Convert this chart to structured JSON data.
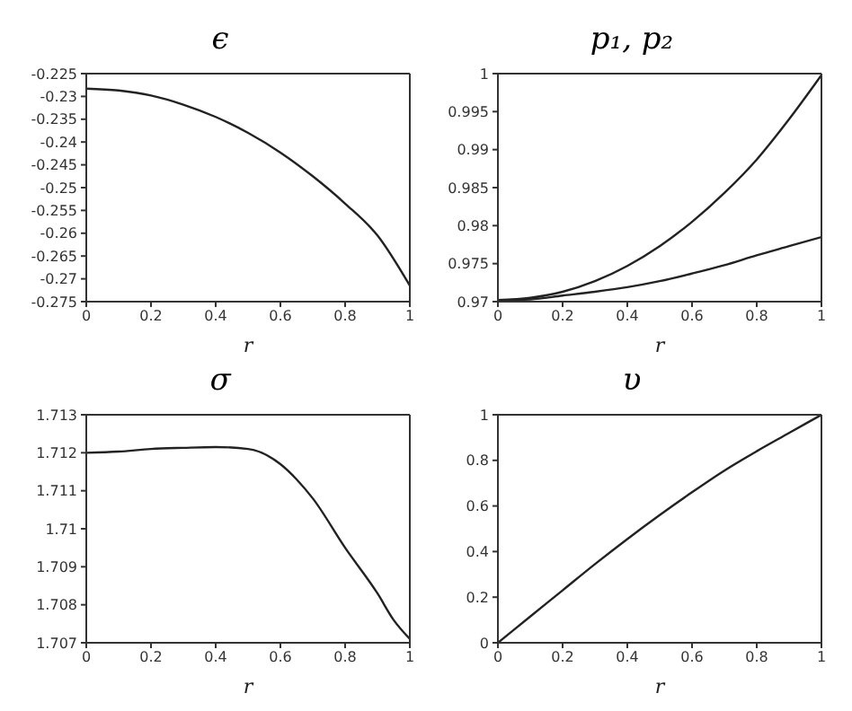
{
  "chart_data": [
    {
      "type": "line",
      "title": "ϵ",
      "xlabel": "r",
      "x": [
        0,
        0.1,
        0.2,
        0.3,
        0.4,
        0.5,
        0.6,
        0.7,
        0.8,
        0.9,
        1
      ],
      "xlim": [
        0,
        1
      ],
      "xticks": [
        0,
        0.2,
        0.4,
        0.6,
        0.8,
        1
      ],
      "ylim": [
        -0.275,
        -0.225
      ],
      "yticks": [
        -0.275,
        -0.27,
        -0.265,
        -0.26,
        -0.255,
        -0.25,
        -0.245,
        -0.24,
        -0.235,
        -0.23,
        -0.225
      ],
      "series": [
        {
          "color": "#222222",
          "values": [
            -0.2283,
            -0.2287,
            -0.2298,
            -0.2318,
            -0.2345,
            -0.238,
            -0.2423,
            -0.2475,
            -0.2535,
            -0.2605,
            -0.2715
          ]
        }
      ]
    },
    {
      "type": "line",
      "title": "p₁, p₂",
      "xlabel": "r",
      "x": [
        0,
        0.1,
        0.2,
        0.3,
        0.4,
        0.5,
        0.6,
        0.7,
        0.8,
        0.9,
        1
      ],
      "xlim": [
        0,
        1
      ],
      "xticks": [
        0,
        0.2,
        0.4,
        0.6,
        0.8,
        1
      ],
      "ylim": [
        0.97,
        1
      ],
      "yticks": [
        0.97,
        0.975,
        0.98,
        0.985,
        0.99,
        0.995,
        1
      ],
      "series": [
        {
          "color": "#222222",
          "values": [
            0.9702,
            0.9705,
            0.9713,
            0.9727,
            0.9747,
            0.9773,
            0.9805,
            0.9843,
            0.9887,
            0.994,
            0.9998
          ]
        },
        {
          "color": "#222222",
          "values": [
            0.9702,
            0.9703,
            0.9708,
            0.9713,
            0.9719,
            0.9727,
            0.9737,
            0.9748,
            0.9761,
            0.9773,
            0.9785
          ]
        }
      ]
    },
    {
      "type": "line",
      "title": "σ",
      "xlabel": "r",
      "x": [
        0,
        0.1,
        0.2,
        0.3,
        0.4,
        0.5,
        0.6,
        0.65,
        0.7,
        0.8,
        0.9,
        0.95,
        1
      ],
      "xlim": [
        0,
        1
      ],
      "xticks": [
        0,
        0.2,
        0.4,
        0.6,
        0.8,
        1
      ],
      "ylim": [
        1.707,
        1.713
      ],
      "yticks": [
        1.707,
        1.708,
        1.709,
        1.71,
        1.711,
        1.712,
        1.713
      ],
      "series": [
        {
          "color": "#222222",
          "values": [
            1.712,
            1.71203,
            1.7121,
            1.71213,
            1.71215,
            1.7121,
            1.7117,
            1.7113,
            1.7108,
            1.7095,
            1.7083,
            1.7076,
            1.7071
          ]
        }
      ]
    },
    {
      "type": "line",
      "title": "υ",
      "xlabel": "r",
      "x": [
        0,
        0.1,
        0.2,
        0.3,
        0.4,
        0.5,
        0.6,
        0.7,
        0.8,
        0.9,
        1
      ],
      "xlim": [
        0,
        1
      ],
      "xticks": [
        0,
        0.2,
        0.4,
        0.6,
        0.8,
        1
      ],
      "ylim": [
        0,
        1
      ],
      "yticks": [
        0,
        0.2,
        0.4,
        0.6,
        0.8,
        1
      ],
      "series": [
        {
          "color": "#222222",
          "values": [
            0,
            0.115,
            0.23,
            0.345,
            0.455,
            0.56,
            0.66,
            0.755,
            0.84,
            0.92,
            1
          ]
        }
      ]
    }
  ]
}
